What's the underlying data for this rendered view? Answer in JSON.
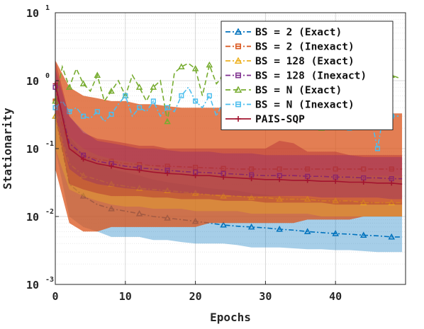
{
  "chart_data": {
    "type": "line",
    "xlabel": "Epochs",
    "ylabel": "Stationarity",
    "xlim": [
      0,
      50
    ],
    "ylim_log10": [
      -3,
      1
    ],
    "y_scale": "log",
    "grid": "on (major and minor)",
    "legend_position": "top-right",
    "x_ticks": [
      "0",
      "10",
      "20",
      "30",
      "40"
    ],
    "x_tick_values": [
      0,
      10,
      20,
      30,
      40
    ],
    "y_tick_exponents": [
      -3,
      -2,
      -1,
      0,
      1
    ],
    "y_tick_base": "10",
    "series": [
      {
        "name": "BS = 2 (Exact)",
        "color": "#0072BD",
        "marker": "triangle",
        "dash": "dashdot",
        "x": [
          0,
          2,
          4,
          6,
          8,
          10,
          12,
          14,
          16,
          18,
          20,
          22,
          24,
          26,
          28,
          30,
          32,
          34,
          36,
          38,
          40,
          42,
          44,
          46,
          48,
          49.5
        ],
        "y": [
          0.3,
          0.03,
          0.02,
          0.015,
          0.013,
          0.012,
          0.011,
          0.01,
          0.0095,
          0.009,
          0.0085,
          0.008,
          0.0075,
          0.0072,
          0.007,
          0.0068,
          0.0065,
          0.0063,
          0.006,
          0.0058,
          0.0056,
          0.0055,
          0.0053,
          0.0052,
          0.005,
          0.005
        ],
        "y_low": [
          0.1,
          0.01,
          0.007,
          0.006,
          0.005,
          0.005,
          0.005,
          0.0045,
          0.0045,
          0.0042,
          0.004,
          0.004,
          0.004,
          0.0038,
          0.0035,
          0.0035,
          0.0035,
          0.0034,
          0.0033,
          0.0033,
          0.0032,
          0.0032,
          0.0031,
          0.003,
          0.003,
          0.003
        ],
        "y_high": [
          1.0,
          0.15,
          0.08,
          0.06,
          0.05,
          0.045,
          0.04,
          0.035,
          0.032,
          0.03,
          0.028,
          0.026,
          0.025,
          0.024,
          0.022,
          0.021,
          0.02,
          0.019,
          0.019,
          0.018,
          0.018,
          0.017,
          0.017,
          0.016,
          0.016,
          0.016
        ]
      },
      {
        "name": "BS = 2 (Inexact)",
        "color": "#D95319",
        "marker": "square",
        "dash": "dashdot",
        "x": [
          0,
          2,
          4,
          6,
          8,
          10,
          12,
          14,
          16,
          18,
          20,
          22,
          24,
          26,
          28,
          30,
          32,
          34,
          36,
          38,
          40,
          42,
          44,
          46,
          48,
          49.5
        ],
        "y": [
          0.5,
          0.1,
          0.08,
          0.07,
          0.065,
          0.06,
          0.058,
          0.056,
          0.055,
          0.054,
          0.053,
          0.052,
          0.051,
          0.05,
          0.05,
          0.05,
          0.05,
          0.05,
          0.05,
          0.05,
          0.05,
          0.05,
          0.05,
          0.05,
          0.05,
          0.05
        ],
        "y_low": [
          0.05,
          0.008,
          0.006,
          0.006,
          0.007,
          0.007,
          0.007,
          0.007,
          0.007,
          0.007,
          0.007,
          0.008,
          0.008,
          0.008,
          0.008,
          0.008,
          0.008,
          0.008,
          0.009,
          0.009,
          0.009,
          0.009,
          0.01,
          0.01,
          0.01,
          0.01
        ],
        "y_high": [
          2.0,
          0.8,
          0.6,
          0.55,
          0.5,
          0.5,
          0.45,
          0.45,
          0.42,
          0.4,
          0.4,
          0.4,
          0.4,
          0.38,
          0.38,
          0.38,
          0.38,
          0.38,
          0.35,
          0.35,
          0.35,
          0.35,
          0.35,
          0.33,
          0.33,
          0.33
        ]
      },
      {
        "name": "BS = 128 (Exact)",
        "color": "#EDB120",
        "marker": "triangle",
        "dash": "dashdot",
        "x": [
          0,
          2,
          4,
          6,
          8,
          10,
          12,
          14,
          16,
          18,
          20,
          22,
          24,
          26,
          28,
          30,
          32,
          34,
          36,
          38,
          40,
          42,
          44,
          46,
          48,
          49.5
        ],
        "y": [
          0.3,
          0.06,
          0.04,
          0.035,
          0.03,
          0.028,
          0.026,
          0.025,
          0.024,
          0.023,
          0.022,
          0.021,
          0.02,
          0.02,
          0.019,
          0.019,
          0.018,
          0.018,
          0.018,
          0.017,
          0.017,
          0.017,
          0.016,
          0.016,
          0.016,
          0.016
        ],
        "y_low": [
          0.1,
          0.025,
          0.02,
          0.017,
          0.015,
          0.014,
          0.014,
          0.013,
          0.013,
          0.013,
          0.012,
          0.012,
          0.012,
          0.012,
          0.011,
          0.011,
          0.011,
          0.011,
          0.011,
          0.01,
          0.01,
          0.01,
          0.01,
          0.01,
          0.01,
          0.01
        ],
        "y_high": [
          0.8,
          0.15,
          0.1,
          0.08,
          0.07,
          0.065,
          0.06,
          0.055,
          0.05,
          0.05,
          0.048,
          0.046,
          0.045,
          0.044,
          0.043,
          0.042,
          0.041,
          0.04,
          0.04,
          0.04,
          0.04,
          0.04,
          0.04,
          0.04,
          0.04,
          0.04
        ]
      },
      {
        "name": "BS = 128 (Inexact)",
        "color": "#7E2F8E",
        "marker": "square",
        "dash": "dashdot",
        "x": [
          0,
          2,
          4,
          6,
          8,
          10,
          12,
          14,
          16,
          18,
          20,
          22,
          24,
          26,
          28,
          30,
          32,
          34,
          36,
          38,
          40,
          42,
          44,
          46,
          48,
          49.5
        ],
        "y": [
          0.8,
          0.12,
          0.08,
          0.065,
          0.06,
          0.055,
          0.052,
          0.05,
          0.048,
          0.046,
          0.045,
          0.044,
          0.043,
          0.042,
          0.041,
          0.04,
          0.04,
          0.04,
          0.039,
          0.039,
          0.038,
          0.038,
          0.037,
          0.037,
          0.036,
          0.036
        ],
        "y_low": [
          0.3,
          0.05,
          0.035,
          0.03,
          0.028,
          0.026,
          0.025,
          0.024,
          0.023,
          0.022,
          0.022,
          0.021,
          0.021,
          0.02,
          0.02,
          0.02,
          0.02,
          0.02,
          0.02,
          0.019,
          0.019,
          0.019,
          0.019,
          0.019,
          0.018,
          0.018
        ],
        "y_high": [
          1.5,
          0.3,
          0.18,
          0.13,
          0.12,
          0.11,
          0.1,
          0.1,
          0.095,
          0.09,
          0.09,
          0.09,
          0.085,
          0.085,
          0.085,
          0.08,
          0.08,
          0.08,
          0.08,
          0.08,
          0.08,
          0.08,
          0.075,
          0.075,
          0.075,
          0.075
        ]
      },
      {
        "name": "BS = N (Exact)",
        "color": "#77AC30",
        "marker": "triangle",
        "dash": "dashed",
        "x": [
          0,
          1,
          2,
          3,
          4,
          5,
          6,
          7,
          8,
          9,
          10,
          11,
          12,
          13,
          14,
          15,
          16,
          17,
          18,
          19,
          20,
          21,
          22,
          23,
          24,
          25,
          26,
          27,
          28,
          29,
          30,
          31,
          32,
          33,
          34,
          35,
          36,
          37,
          38,
          39,
          40,
          41,
          42,
          43,
          44,
          45,
          46,
          47,
          48,
          49
        ],
        "y": [
          0.5,
          1.6,
          0.8,
          1.5,
          0.9,
          0.7,
          1.2,
          0.5,
          0.7,
          1.0,
          0.6,
          1.2,
          0.8,
          0.5,
          0.8,
          1.0,
          0.25,
          1.3,
          1.6,
          1.8,
          1.5,
          0.6,
          1.7,
          0.9,
          1.2,
          0.8,
          1.3,
          0.7,
          1.1,
          0.6,
          0.9,
          1.1,
          0.5,
          1.2,
          0.7,
          0.5,
          1.0,
          0.6,
          0.2,
          1.0,
          0.6,
          0.8,
          0.5,
          0.9,
          0.7,
          1.1,
          0.6,
          0.4,
          1.2,
          1.1
        ]
      },
      {
        "name": "BS = N (Inexact)",
        "color": "#4DBEEE",
        "marker": "square",
        "dash": "dashdot",
        "x": [
          0,
          1,
          2,
          3,
          4,
          5,
          6,
          7,
          8,
          9,
          10,
          11,
          12,
          13,
          14,
          15,
          16,
          17,
          18,
          19,
          20,
          21,
          22,
          23,
          24,
          25,
          26,
          27,
          28,
          29,
          30,
          31,
          32,
          33,
          34,
          35,
          36,
          37,
          38,
          39,
          40,
          41,
          42,
          43,
          44,
          45,
          46,
          47,
          48,
          49
        ],
        "y": [
          0.4,
          0.5,
          0.35,
          0.4,
          0.3,
          0.28,
          0.35,
          0.25,
          0.32,
          0.45,
          0.6,
          0.3,
          0.4,
          0.35,
          0.5,
          0.3,
          0.4,
          0.35,
          0.6,
          0.8,
          0.5,
          0.4,
          0.6,
          0.3,
          0.5,
          0.7,
          0.9,
          0.4,
          0.6,
          0.3,
          0.5,
          0.35,
          0.45,
          0.3,
          0.6,
          0.4,
          0.3,
          0.5,
          0.35,
          0.25,
          0.4,
          0.3,
          0.2,
          0.35,
          0.5,
          0.3,
          0.1,
          0.4,
          0.3,
          0.3
        ]
      },
      {
        "name": "PAIS-SQP",
        "color": "#A2142F",
        "marker": "plus",
        "dash": "solid",
        "x": [
          0,
          2,
          4,
          6,
          8,
          10,
          12,
          14,
          16,
          18,
          20,
          22,
          24,
          26,
          28,
          30,
          32,
          34,
          36,
          38,
          40,
          42,
          44,
          46,
          48,
          49.5
        ],
        "y": [
          0.9,
          0.1,
          0.07,
          0.06,
          0.055,
          0.05,
          0.048,
          0.045,
          0.043,
          0.042,
          0.04,
          0.04,
          0.038,
          0.037,
          0.036,
          0.035,
          0.035,
          0.034,
          0.034,
          0.033,
          0.033,
          0.032,
          0.032,
          0.031,
          0.031,
          0.03
        ],
        "y_low": [
          0.3,
          0.03,
          0.025,
          0.022,
          0.02,
          0.02,
          0.02,
          0.019,
          0.019,
          0.018,
          0.018,
          0.018,
          0.017,
          0.017,
          0.017,
          0.016,
          0.016,
          0.016,
          0.016,
          0.016,
          0.015,
          0.015,
          0.015,
          0.015,
          0.015,
          0.015
        ],
        "y_high": [
          2.0,
          0.3,
          0.17,
          0.14,
          0.13,
          0.12,
          0.11,
          0.11,
          0.1,
          0.1,
          0.1,
          0.1,
          0.1,
          0.1,
          0.1,
          0.1,
          0.13,
          0.12,
          0.09,
          0.09,
          0.09,
          0.08,
          0.08,
          0.08,
          0.08,
          0.08
        ]
      }
    ]
  }
}
